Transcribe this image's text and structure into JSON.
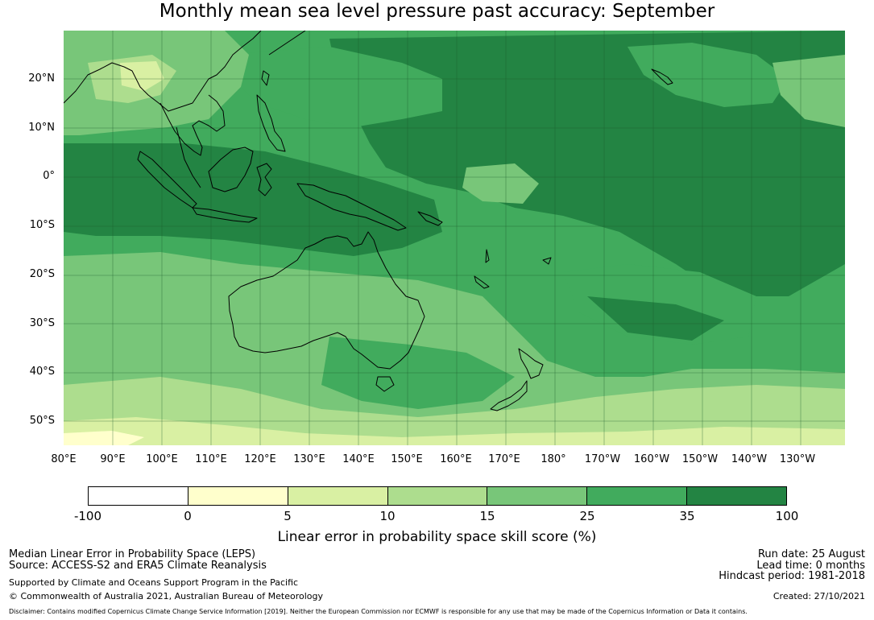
{
  "title": "Monthly mean sea level pressure past accuracy: September",
  "map": {
    "lat_labels": [
      "20°N",
      "10°N",
      "0°",
      "10°S",
      "20°S",
      "30°S",
      "40°S",
      "50°S"
    ],
    "lon_labels": [
      "80°E",
      "90°E",
      "100°E",
      "110°E",
      "120°E",
      "130°E",
      "140°E",
      "150°E",
      "160°E",
      "170°E",
      "180°",
      "170°W",
      "160°W",
      "150°W",
      "140°W",
      "130°W"
    ]
  },
  "legend": {
    "ticks": [
      "-100",
      "0",
      "5",
      "10",
      "15",
      "25",
      "35",
      "100"
    ],
    "colors": [
      "#ffffff",
      "#ffffcc",
      "#d9f0a3",
      "#addd8e",
      "#78c679",
      "#41ab5d",
      "#238443"
    ],
    "label": "Linear error in probability space skill score (%)"
  },
  "footer": {
    "method": "Median Linear Error in Probability Space (LEPS)",
    "source": "Source: ACCESS-S2 and ERA5 Climate Reanalysis",
    "support": "Supported by Climate and Oceans Support Program in the Pacific",
    "copyright": "© Commonwealth of Australia 2021, Australian Bureau of Meteorology",
    "disclaimer": "Disclaimer: Contains modified Copernicus Climate Change Service Information [2019]. Neither the European Commission nor ECMWF is responsible for any use that may be made of the Copernicus Information or Data it contains.",
    "run_date": "Run date: 25 August",
    "lead_time": "Lead time: 0 months",
    "hindcast": "Hindcast period: 1981-2018",
    "created": "Created: 27/10/2021"
  }
}
